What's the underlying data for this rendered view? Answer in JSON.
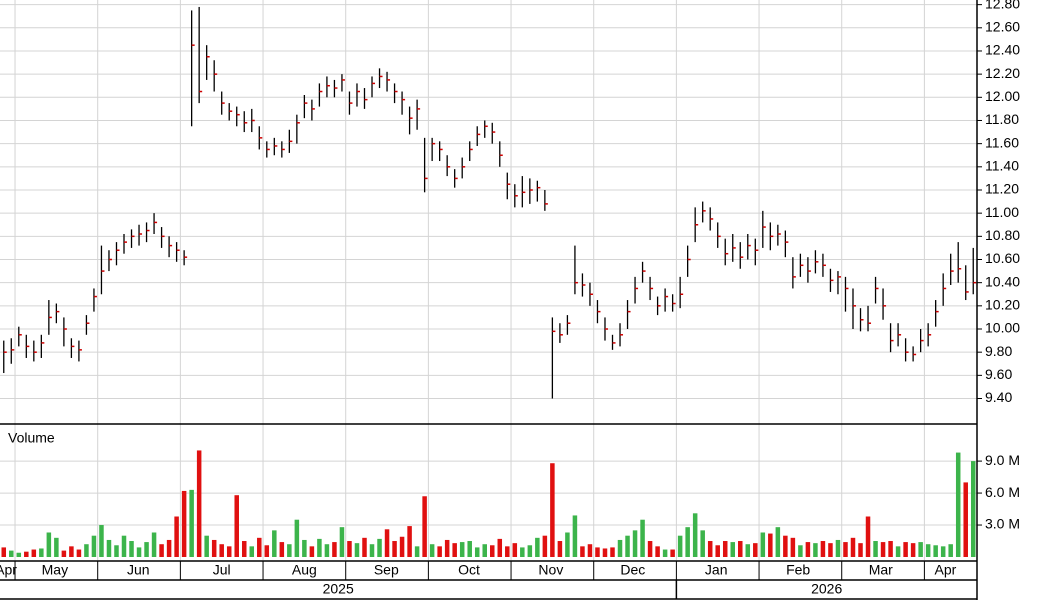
{
  "chart_data": {
    "type": "ohlc",
    "xlim": [
      0,
      130
    ],
    "xticks": [
      2,
      13,
      24,
      35,
      46,
      57,
      68,
      79,
      90,
      101,
      112,
      123
    ],
    "month_labels": [
      {
        "value": 0.8,
        "label": "Apr"
      },
      {
        "value": 7.3,
        "label": "May"
      },
      {
        "value": 18.4,
        "label": "Jun"
      },
      {
        "value": 29.5,
        "label": "Jul"
      },
      {
        "value": 40.5,
        "label": "Aug"
      },
      {
        "value": 51.4,
        "label": "Sep"
      },
      {
        "value": 62.4,
        "label": "Oct"
      },
      {
        "value": 73.3,
        "label": "Nov"
      },
      {
        "value": 84.2,
        "label": "Dec"
      },
      {
        "value": 95.3,
        "label": "Jan"
      },
      {
        "value": 106.2,
        "label": "Feb"
      },
      {
        "value": 117.2,
        "label": "Mar"
      },
      {
        "value": 125.8,
        "label": "Apr"
      }
    ],
    "year_labels": [
      {
        "value": 45,
        "label": "2025"
      },
      {
        "value": 110,
        "label": "2026"
      }
    ],
    "year_breaks": [
      90
    ],
    "high": [
      9.9,
      9.92,
      10.02,
      9.95,
      9.9,
      9.95,
      10.25,
      10.22,
      10.1,
      9.92,
      9.9,
      10.12,
      10.35,
      10.72,
      10.68,
      10.75,
      10.82,
      10.86,
      10.9,
      10.92,
      11.0,
      10.88,
      10.8,
      10.75,
      10.68,
      12.75,
      12.78,
      12.45,
      12.32,
      12.05,
      11.95,
      11.92,
      11.88,
      11.9,
      11.75,
      11.62,
      11.65,
      11.62,
      11.72,
      11.85,
      12.02,
      11.98,
      12.12,
      12.18,
      12.15,
      12.2,
      12.05,
      12.12,
      12.08,
      12.18,
      12.25,
      12.22,
      12.12,
      12.05,
      11.92,
      11.98,
      11.65,
      11.65,
      11.62,
      11.5,
      11.38,
      11.48,
      11.62,
      11.75,
      11.8,
      11.78,
      11.62,
      11.35,
      11.25,
      11.32,
      11.3,
      11.28,
      11.2,
      10.1,
      10.05,
      10.12,
      10.72,
      10.48,
      10.4,
      10.25,
      10.1,
      9.95,
      10.05,
      10.25,
      10.45,
      10.58,
      10.45,
      10.28,
      10.35,
      10.3,
      10.45,
      10.72,
      11.05,
      11.1,
      11.05,
      10.92,
      10.78,
      10.82,
      10.75,
      10.82,
      10.78,
      11.02,
      10.92,
      10.9,
      10.85,
      10.62,
      10.65,
      10.62,
      10.68,
      10.65,
      10.52,
      10.5,
      10.45,
      10.35,
      10.18,
      10.2,
      10.45,
      10.35,
      10.05,
      10.05,
      9.92,
      9.85,
      10.0,
      10.05,
      10.25,
      10.48,
      10.65,
      10.75,
      10.55,
      10.7
    ],
    "low": [
      9.62,
      9.7,
      9.85,
      9.75,
      9.72,
      9.75,
      9.95,
      10.05,
      9.85,
      9.75,
      9.72,
      9.95,
      10.15,
      10.3,
      10.5,
      10.55,
      10.65,
      10.7,
      10.72,
      10.75,
      10.82,
      10.7,
      10.62,
      10.58,
      10.55,
      11.75,
      11.95,
      12.15,
      12.05,
      11.85,
      11.8,
      11.75,
      11.7,
      11.7,
      11.55,
      11.48,
      11.5,
      11.48,
      11.52,
      11.6,
      11.82,
      11.8,
      11.92,
      12.0,
      12.0,
      12.05,
      11.85,
      11.92,
      11.9,
      12.0,
      12.08,
      12.05,
      11.95,
      11.85,
      11.68,
      11.72,
      11.18,
      11.45,
      11.45,
      11.32,
      11.22,
      11.3,
      11.45,
      11.58,
      11.65,
      11.6,
      11.4,
      11.12,
      11.05,
      11.05,
      11.08,
      11.1,
      11.02,
      9.4,
      9.88,
      9.95,
      10.3,
      10.28,
      10.2,
      10.05,
      9.9,
      9.82,
      9.85,
      10.0,
      10.22,
      10.4,
      10.25,
      10.12,
      10.15,
      10.15,
      10.18,
      10.45,
      10.75,
      10.92,
      10.85,
      10.7,
      10.55,
      10.58,
      10.52,
      10.6,
      10.55,
      10.7,
      10.68,
      10.72,
      10.62,
      10.35,
      10.45,
      10.4,
      10.48,
      10.45,
      10.32,
      10.3,
      10.15,
      10.0,
      9.98,
      9.98,
      10.22,
      10.08,
      9.8,
      9.85,
      9.72,
      9.72,
      9.8,
      9.85,
      10.02,
      10.2,
      10.38,
      10.4,
      10.25,
      10.3
    ],
    "close": [
      9.8,
      9.82,
      9.95,
      9.85,
      9.8,
      9.88,
      10.1,
      10.15,
      10.0,
      9.85,
      9.82,
      10.05,
      10.28,
      10.5,
      10.6,
      10.68,
      10.75,
      10.8,
      10.82,
      10.85,
      10.92,
      10.8,
      10.72,
      10.68,
      10.62,
      12.45,
      12.05,
      12.35,
      12.2,
      11.95,
      11.88,
      11.85,
      11.78,
      11.8,
      11.65,
      11.55,
      11.58,
      11.55,
      11.62,
      11.78,
      11.95,
      11.9,
      12.05,
      12.1,
      12.08,
      12.15,
      11.95,
      12.05,
      11.98,
      12.12,
      12.18,
      12.15,
      12.05,
      11.98,
      11.82,
      11.9,
      11.3,
      11.6,
      11.55,
      11.4,
      11.3,
      11.4,
      11.55,
      11.68,
      11.75,
      11.7,
      11.5,
      11.25,
      11.15,
      11.18,
      11.2,
      11.22,
      11.08,
      9.98,
      9.95,
      10.05,
      10.4,
      10.38,
      10.3,
      10.15,
      10.0,
      9.88,
      9.95,
      10.15,
      10.35,
      10.5,
      10.35,
      10.2,
      10.28,
      10.22,
      10.3,
      10.6,
      10.9,
      11.02,
      10.95,
      10.8,
      10.65,
      10.7,
      10.62,
      10.72,
      10.68,
      10.88,
      10.8,
      10.82,
      10.75,
      10.45,
      10.55,
      10.5,
      10.58,
      10.55,
      10.42,
      10.45,
      10.35,
      10.2,
      10.08,
      10.05,
      10.35,
      10.2,
      9.9,
      9.95,
      9.8,
      9.78,
      9.9,
      9.95,
      10.15,
      10.35,
      10.5,
      10.52,
      10.32,
      10.4
    ],
    "ylim": [
      9.18,
      12.84
    ],
    "yticks": [
      {
        "value": 9.4,
        "label": "9.40"
      },
      {
        "value": 9.6,
        "label": "9.60"
      },
      {
        "value": 9.8,
        "label": "9.80"
      },
      {
        "value": 10,
        "label": "10.00"
      },
      {
        "value": 10.2,
        "label": "10.20"
      },
      {
        "value": 10.4,
        "label": "10.40"
      },
      {
        "value": 10.6,
        "label": "10.60"
      },
      {
        "value": 10.8,
        "label": "10.80"
      },
      {
        "value": 11,
        "label": "11.00"
      },
      {
        "value": 11.2,
        "label": "11.20"
      },
      {
        "value": 11.4,
        "label": "11.40"
      },
      {
        "value": 11.6,
        "label": "11.60"
      },
      {
        "value": 11.8,
        "label": "11.80"
      },
      {
        "value": 12,
        "label": "12.00"
      },
      {
        "value": 12.2,
        "label": "12.20"
      },
      {
        "value": 12.4,
        "label": "12.40"
      },
      {
        "value": 12.6,
        "label": "12.60"
      },
      {
        "value": 12.8,
        "label": "12.80"
      }
    ],
    "bar_color": "#000000",
    "close_color": "#cc0000",
    "grid": true,
    "volume": {
      "title": "Volume",
      "values": [
        0.9,
        0.6,
        0.4,
        0.5,
        0.7,
        0.8,
        2.3,
        1.8,
        0.6,
        1.0,
        0.7,
        1.2,
        2.0,
        3.0,
        1.6,
        1.1,
        2.0,
        1.5,
        0.9,
        1.4,
        2.3,
        1.2,
        1.6,
        3.8,
        6.2,
        6.3,
        10.0,
        2.0,
        1.6,
        1.2,
        1.0,
        5.8,
        1.5,
        1.0,
        1.8,
        1.1,
        2.5,
        1.4,
        1.2,
        3.5,
        1.6,
        1.0,
        1.7,
        1.2,
        1.4,
        2.8,
        1.5,
        1.3,
        1.8,
        1.2,
        1.7,
        2.6,
        1.5,
        1.9,
        2.9,
        1.0,
        5.7,
        1.2,
        1.0,
        1.6,
        1.3,
        1.4,
        1.5,
        0.9,
        1.2,
        1.1,
        1.7,
        1.0,
        1.3,
        0.9,
        1.1,
        1.8,
        2.0,
        8.8,
        1.5,
        2.3,
        3.9,
        1.0,
        1.2,
        0.9,
        0.8,
        0.9,
        1.6,
        2.0,
        2.5,
        3.5,
        1.5,
        1.0,
        0.7,
        0.7,
        2.0,
        2.8,
        4.1,
        2.5,
        1.5,
        1.1,
        1.5,
        1.4,
        1.5,
        1.2,
        1.3,
        2.3,
        2.2,
        2.8,
        2.0,
        1.8,
        1.1,
        1.4,
        1.3,
        1.5,
        1.3,
        1.6,
        1.4,
        1.8,
        1.3,
        3.8,
        1.5,
        1.4,
        1.5,
        1.0,
        1.4,
        1.3,
        1.4,
        1.2,
        1.1,
        1.0,
        1.2,
        9.8,
        7.0,
        9.0
      ],
      "ylim": [
        0,
        12.2
      ],
      "yticks": [
        {
          "value": 3,
          "label": "3.0 M"
        },
        {
          "value": 6,
          "label": "6.0 M"
        },
        {
          "value": 9,
          "label": "9.0 M"
        }
      ],
      "up_color": "#3cb44b",
      "down_color": "#e01010"
    }
  }
}
